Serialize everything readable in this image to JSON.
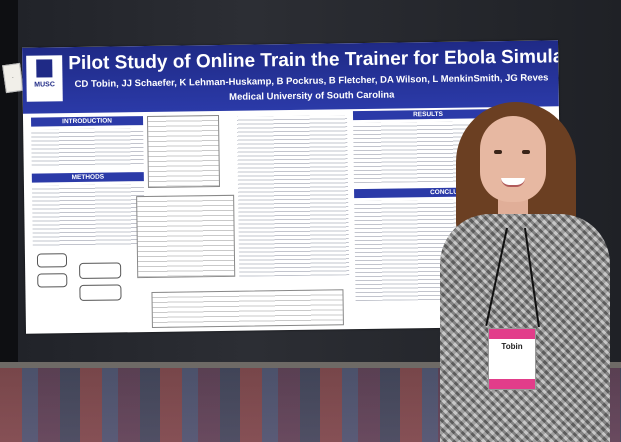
{
  "poster": {
    "title": "Pilot Study of Online Train the Trainer for Ebola Simulation Training",
    "authors": "CD Tobin,  JJ Schaefer,  K Lehman-Huskamp,  B Pockrus,  B Fletcher,  DA Wilson,  L MenkinSmith,  JG Reves",
    "institution": "Medical University of South Carolina",
    "logo": "MUSC",
    "sections": {
      "introduction": "INTRODUCTION",
      "methods": "METHODS",
      "results": "RESULTS",
      "conclusions": "CONCLUSIONS"
    }
  },
  "badge": {
    "name": "Tobin"
  },
  "icons": {
    "logo": "musc-logo-icon"
  },
  "colors": {
    "banner": "#2b3aa8",
    "badge_accent": "#e23d8a"
  }
}
